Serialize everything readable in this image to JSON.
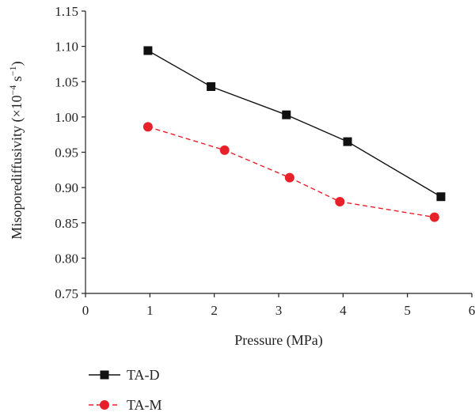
{
  "chart_data": {
    "type": "line",
    "title": "",
    "xlabel": "Pressure (MPa)",
    "ylabel_prefix": "Misoporediffusivity (×10",
    "ylabel_exp1": "−4",
    "ylabel_mid": " s",
    "ylabel_exp2": "−1",
    "ylabel_suffix": ")",
    "xlim": [
      0,
      6
    ],
    "ylim": [
      0.75,
      1.15
    ],
    "xticks": [
      0,
      1,
      2,
      3,
      4,
      5,
      6
    ],
    "yticks": [
      0.75,
      0.8,
      0.85,
      0.9,
      0.95,
      1.0,
      1.05,
      1.1,
      1.15
    ],
    "ytick_labels": [
      "0.75",
      "0.80",
      "0.85",
      "0.90",
      "0.95",
      "1.00",
      "1.05",
      "1.10",
      "1.15"
    ],
    "grid": false,
    "legend_position": "bottom-left",
    "series": [
      {
        "name": "TA-D",
        "marker": "square",
        "line_style": "solid",
        "color": "#111111",
        "x": [
          0.97,
          1.95,
          3.12,
          4.07,
          5.52
        ],
        "y": [
          1.094,
          1.043,
          1.003,
          0.965,
          0.887
        ]
      },
      {
        "name": "TA-M",
        "marker": "circle",
        "line_style": "dashed",
        "color": "#e8202a",
        "x": [
          0.97,
          2.16,
          3.17,
          3.95,
          5.42
        ],
        "y": [
          0.986,
          0.953,
          0.914,
          0.88,
          0.858
        ]
      }
    ]
  }
}
